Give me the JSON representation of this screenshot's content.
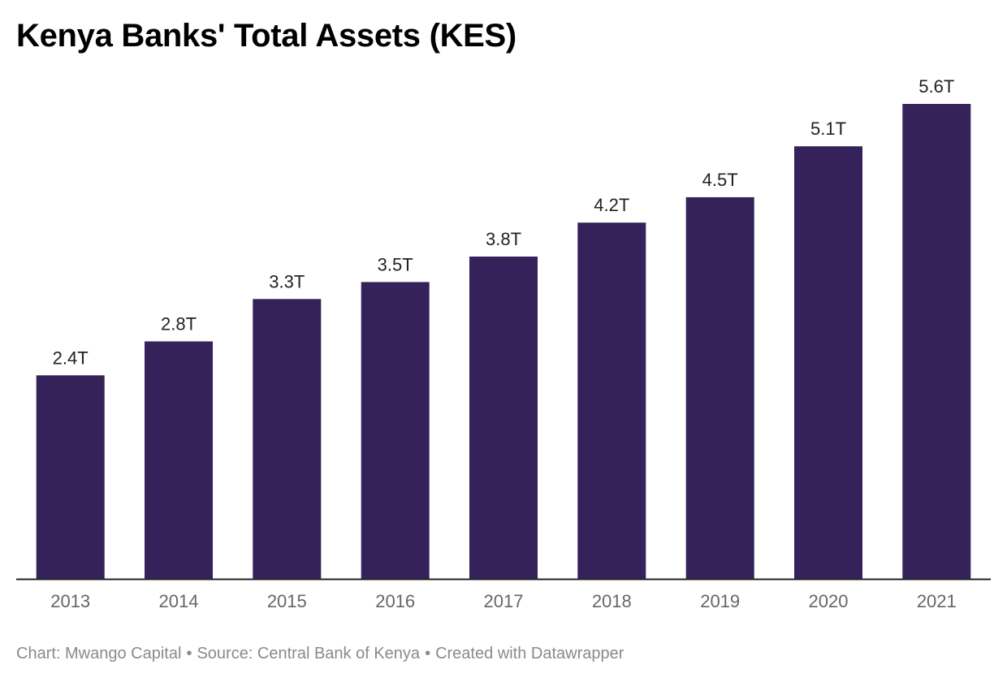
{
  "chart_data": {
    "type": "bar",
    "title": "Kenya Banks' Total Assets (KES)",
    "categories": [
      "2013",
      "2014",
      "2015",
      "2016",
      "2017",
      "2018",
      "2019",
      "2020",
      "2021"
    ],
    "values": [
      2.4,
      2.8,
      3.3,
      3.5,
      3.8,
      4.2,
      4.5,
      5.1,
      5.6
    ],
    "value_labels": [
      "2.4T",
      "2.8T",
      "3.3T",
      "3.5T",
      "3.8T",
      "4.2T",
      "4.5T",
      "5.1T",
      "5.6T"
    ],
    "unit": "T",
    "xlabel": "",
    "ylabel": "",
    "ylim": [
      0,
      5.6
    ],
    "grid": false,
    "bar_color": "#35225a",
    "axis_color": "#222222",
    "tick_label_color": "#666666"
  },
  "footer": {
    "chart_credit": "Chart: Mwango Capital",
    "source": "Source: Central Bank of Kenya",
    "created_with": "Created with Datawrapper",
    "separator": "•"
  }
}
